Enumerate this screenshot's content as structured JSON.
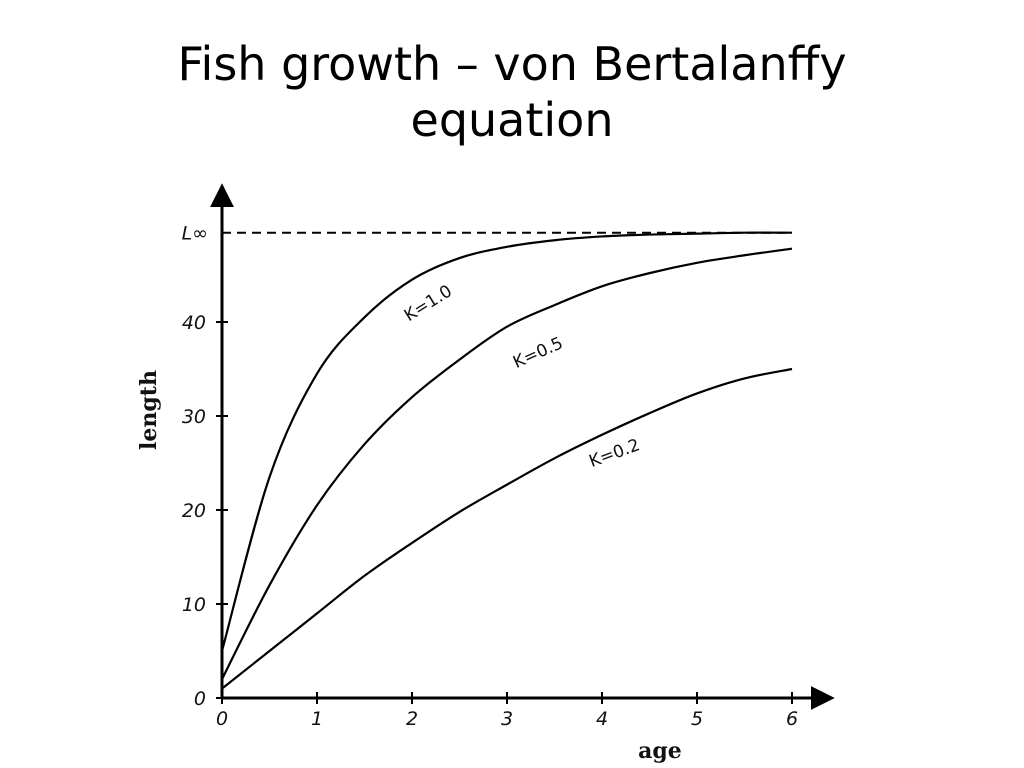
{
  "slide": {
    "title_line1": "Fish growth – von Bertalanffy",
    "title_line2": "equation"
  },
  "chart_data": {
    "type": "line",
    "xlabel": "age",
    "ylabel": "length",
    "xlim": [
      0,
      6
    ],
    "ylim": [
      0,
      50
    ],
    "x_ticks": [
      "0",
      "1",
      "2",
      "3",
      "4",
      "5",
      "6"
    ],
    "y_ticks": [
      {
        "value": 0,
        "label": "0"
      },
      {
        "value": 10,
        "label": "10"
      },
      {
        "value": 20,
        "label": "20"
      },
      {
        "value": 30,
        "label": "30"
      },
      {
        "value": 40,
        "label": "40"
      }
    ],
    "asymptote": {
      "value": 49.5,
      "label": "L∞",
      "style": "dashed"
    },
    "grid": false,
    "series": [
      {
        "name": "K=1.0",
        "x": [
          0,
          0.5,
          1,
          1.5,
          2,
          2.5,
          3,
          3.5,
          4,
          4.5,
          5,
          5.5,
          6
        ],
        "values": [
          5.0,
          23.5,
          34.5,
          40.5,
          44.5,
          46.8,
          48.0,
          48.7,
          49.1,
          49.3,
          49.4,
          49.5,
          49.5
        ]
      },
      {
        "name": "K=0.5",
        "x": [
          0,
          0.5,
          1,
          1.5,
          2,
          2.5,
          3,
          3.5,
          4,
          4.5,
          5,
          5.5,
          6
        ],
        "values": [
          2.0,
          12.0,
          20.5,
          27.0,
          32.0,
          36.0,
          39.5,
          41.8,
          43.8,
          45.2,
          46.3,
          47.1,
          47.8
        ]
      },
      {
        "name": "K=0.2",
        "x": [
          0,
          0.5,
          1,
          1.5,
          2,
          2.5,
          3,
          3.5,
          4,
          4.5,
          5,
          5.5,
          6
        ],
        "values": [
          1.0,
          5.0,
          9.0,
          13.0,
          16.5,
          19.8,
          22.7,
          25.5,
          28.0,
          30.3,
          32.4,
          34.0,
          35.0
        ]
      }
    ],
    "curve_labels": [
      {
        "series": "K=1.0",
        "text": "K=1.0",
        "x": 2.2,
        "y": 41.5,
        "angle": -32
      },
      {
        "series": "K=0.5",
        "text": "K=0.5",
        "x": 3.35,
        "y": 36.2,
        "angle": -24
      },
      {
        "series": "K=0.2",
        "text": "K=0.2",
        "x": 4.15,
        "y": 25.5,
        "angle": -20
      }
    ]
  }
}
